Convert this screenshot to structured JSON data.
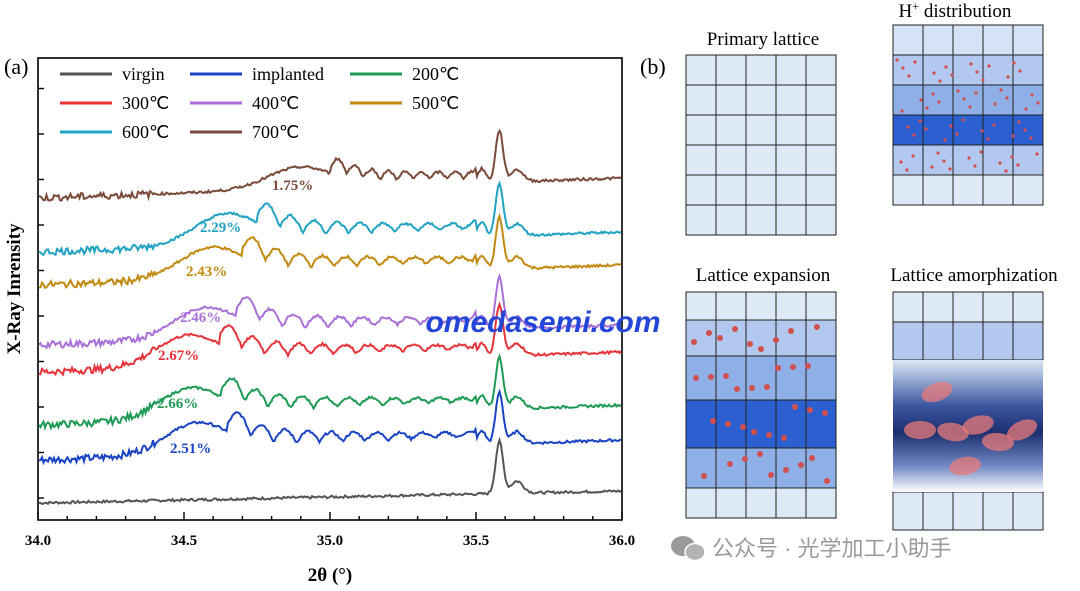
{
  "chart_data": {
    "type": "line",
    "panel_label": "(a)",
    "xlabel": "2θ (°)",
    "ylabel": "X-Ray Inrensity",
    "xlim": [
      34.0,
      36.0
    ],
    "xticks": [
      "34.0",
      "34.5",
      "35.0",
      "35.5",
      "36.0"
    ],
    "legend": [
      "virgin",
      "implanted",
      "200℃",
      "300℃",
      "400℃",
      "500℃",
      "600℃",
      "700℃"
    ],
    "series": [
      {
        "name": "virgin",
        "color": "#555555",
        "offset": 0,
        "peak_2theta": 35.58,
        "strain_label": ""
      },
      {
        "name": "implanted",
        "color": "#1a44c4",
        "offset": 1,
        "peak_2theta": 35.58,
        "strain_label": "2.51%",
        "strain_peak_2theta": 34.55
      },
      {
        "name": "200℃",
        "color": "#1f9a55",
        "offset": 2,
        "peak_2theta": 35.58,
        "strain_label": "2.66%",
        "strain_peak_2theta": 34.53
      },
      {
        "name": "300℃",
        "color": "#e6343a",
        "offset": 3,
        "peak_2theta": 35.58,
        "strain_label": "2.67%",
        "strain_peak_2theta": 34.52
      },
      {
        "name": "400℃",
        "color": "#a870d8",
        "offset": 4,
        "peak_2theta": 35.58,
        "strain_label": "2.46%",
        "strain_peak_2theta": 34.58
      },
      {
        "name": "500℃",
        "color": "#c28a10",
        "offset": 5,
        "peak_2theta": 35.58,
        "strain_label": "2.43%",
        "strain_peak_2theta": 34.6
      },
      {
        "name": "600℃",
        "color": "#22a3c4",
        "offset": 6,
        "peak_2theta": 35.58,
        "strain_label": "2.29%",
        "strain_peak_2theta": 34.65
      },
      {
        "name": "700℃",
        "color": "#7a4a3a",
        "offset": 7,
        "peak_2theta": 35.58,
        "strain_label": "1.75%",
        "strain_peak_2theta": 34.9
      }
    ]
  },
  "schematic": {
    "panel_label": "(b)",
    "titles": {
      "primary": "Primary lattice",
      "h_prefix": "H",
      "h_sup": "+",
      "h_suffix": " distribution",
      "expansion": "Lattice expansion",
      "amorph": "Lattice amorphization"
    }
  },
  "watermarks": {
    "center": "omedasemi.com",
    "bottom": "公众号 · 光学加工小助手"
  },
  "colors": {
    "cell_light": "#dde9f7",
    "cell_mid": "#8fb0e6",
    "cell_dark": "#2c5fcf",
    "dot": "#d05050",
    "watermark_blue": "#2446d8"
  }
}
